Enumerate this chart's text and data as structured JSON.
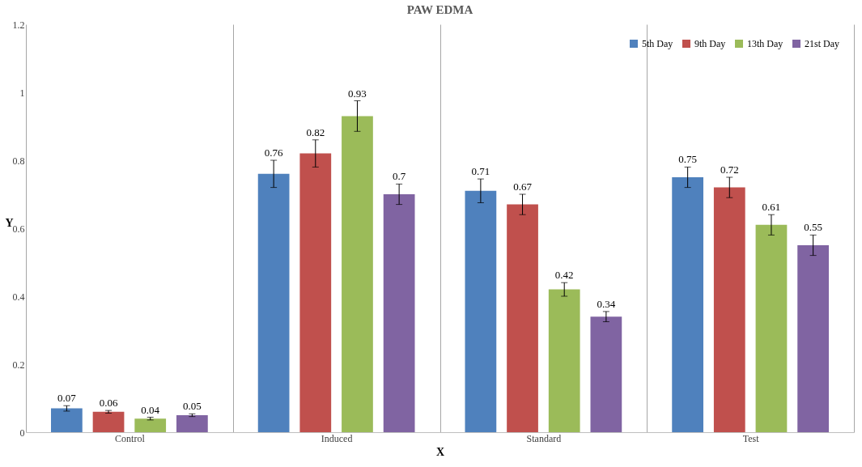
{
  "chart_data": {
    "type": "bar",
    "title": "PAW EDMA",
    "xlabel": "X",
    "ylabel": "Y",
    "categories": [
      "Control",
      "Induced",
      "Standard",
      "Test"
    ],
    "series": [
      {
        "name": "5th Day",
        "color": "#4f81bd",
        "values": [
          0.07,
          0.76,
          0.71,
          0.75
        ],
        "errors": [
          0.008,
          0.04,
          0.035,
          0.03
        ]
      },
      {
        "name": "9th Day",
        "color": "#c0504d",
        "values": [
          0.06,
          0.82,
          0.67,
          0.72
        ],
        "errors": [
          0.004,
          0.04,
          0.03,
          0.03
        ]
      },
      {
        "name": "13th Day",
        "color": "#9bbb59",
        "values": [
          0.04,
          0.93,
          0.42,
          0.61
        ],
        "errors": [
          0.004,
          0.045,
          0.02,
          0.03
        ]
      },
      {
        "name": "21st Day",
        "color": "#8064a2",
        "values": [
          0.05,
          0.7,
          0.34,
          0.55
        ],
        "errors": [
          0.004,
          0.03,
          0.015,
          0.03
        ]
      }
    ],
    "ylim": [
      0,
      1.2
    ],
    "yticks": [
      0,
      0.2,
      0.4,
      0.6,
      0.8,
      1,
      1.2
    ],
    "grid": "x",
    "legend": "top right",
    "data_labels": true
  }
}
